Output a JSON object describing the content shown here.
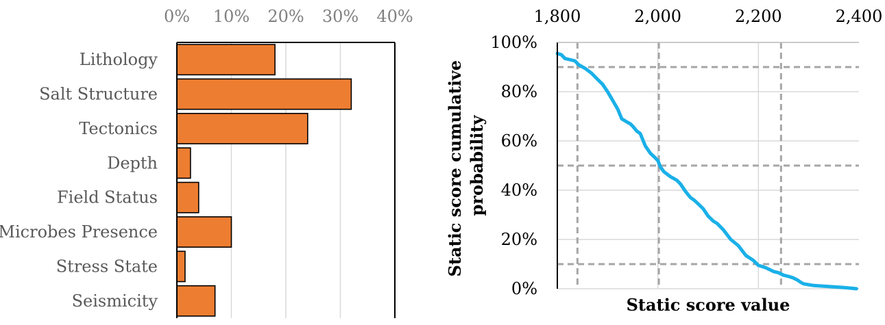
{
  "chart_data": [
    {
      "type": "bar",
      "orientation": "horizontal",
      "categories": [
        "Lithology",
        "Salt Structure",
        "Tectonics",
        "Depth",
        "Field Status",
        "Microbes Presence",
        "Stress State",
        "Seismicity"
      ],
      "values": [
        0.18,
        0.32,
        0.24,
        0.025,
        0.04,
        0.1,
        0.015,
        0.07
      ],
      "xlim": [
        0,
        0.4
      ],
      "xticks": [
        0,
        0.1,
        0.2,
        0.3,
        0.4
      ],
      "xtick_labels": [
        "0%",
        "10%",
        "20%",
        "30%",
        "40%"
      ],
      "x_axis_position": "top",
      "grid": "vertical",
      "bar_color": "#ed7d31",
      "bar_edge_color": "#000000",
      "xlabel": "",
      "ylabel": ""
    },
    {
      "type": "line",
      "xlabel": "Static score value",
      "ylabel_lines": [
        "Static score cumulative",
        "probability"
      ],
      "xlim": [
        1800,
        2400
      ],
      "ylim": [
        0,
        1
      ],
      "xticks": [
        1800,
        2000,
        2200,
        2400
      ],
      "xtick_labels": [
        "1,800",
        "2,000",
        "2,200",
        "2,400"
      ],
      "yticks": [
        0,
        0.2,
        0.4,
        0.6,
        0.8,
        1.0
      ],
      "ytick_labels": [
        "0%",
        "20%",
        "40%",
        "60%",
        "80%",
        "100%"
      ],
      "x_axis_position": "top",
      "grid": "both",
      "line_color": "#1ab0e8",
      "reference_lines": {
        "x": [
          1840,
          2002,
          2245
        ],
        "y": [
          0.9,
          0.5,
          0.1
        ],
        "style": "dashed",
        "color": "#a6a6a6"
      },
      "x": [
        1800,
        1808,
        1815,
        1835,
        1842,
        1855,
        1868,
        1880,
        1890,
        1900,
        1910,
        1920,
        1928,
        1940,
        1945,
        1950,
        1958,
        1965,
        1975,
        1985,
        1993,
        2000,
        2005,
        2012,
        2025,
        2038,
        2045,
        2055,
        2065,
        2072,
        2080,
        2090,
        2100,
        2110,
        2118,
        2130,
        2145,
        2160,
        2175,
        2190,
        2200,
        2215,
        2230,
        2240,
        2250,
        2260,
        2268,
        2278,
        2285,
        2290,
        2295,
        2310,
        2340,
        2370,
        2385,
        2395
      ],
      "y": [
        0.955,
        0.95,
        0.935,
        0.925,
        0.91,
        0.895,
        0.875,
        0.85,
        0.83,
        0.8,
        0.765,
        0.73,
        0.69,
        0.675,
        0.67,
        0.66,
        0.64,
        0.63,
        0.58,
        0.55,
        0.535,
        0.52,
        0.495,
        0.475,
        0.455,
        0.44,
        0.425,
        0.395,
        0.37,
        0.36,
        0.345,
        0.325,
        0.295,
        0.275,
        0.265,
        0.24,
        0.2,
        0.175,
        0.135,
        0.115,
        0.095,
        0.085,
        0.07,
        0.065,
        0.055,
        0.05,
        0.045,
        0.035,
        0.025,
        0.02,
        0.018,
        0.013,
        0.009,
        0.005,
        0.002,
        0.0
      ]
    }
  ]
}
